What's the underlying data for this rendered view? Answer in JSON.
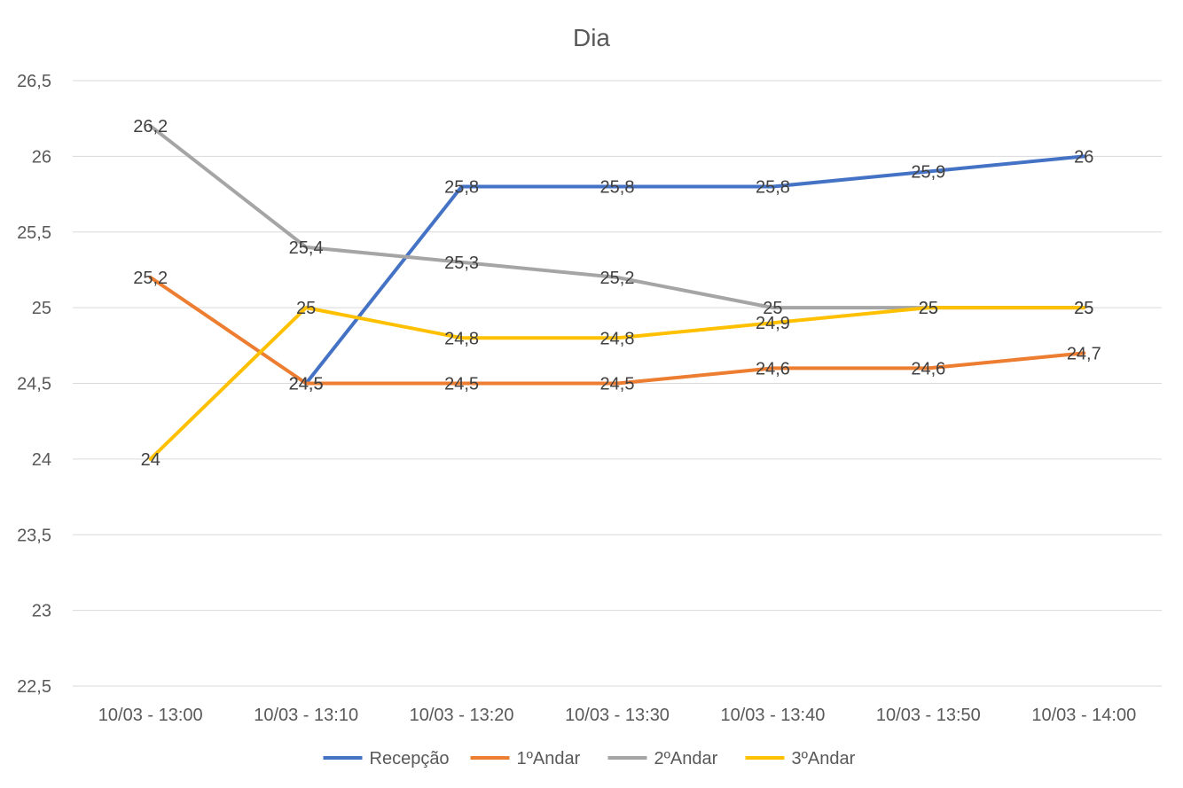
{
  "chart_data": {
    "type": "line",
    "title": "Dia",
    "categories": [
      "10/03 - 13:00",
      "10/03 - 13:10",
      "10/03 - 13:20",
      "10/03 - 13:30",
      "10/03 - 13:40",
      "10/03 - 13:50",
      "10/03 - 14:00"
    ],
    "ylim": [
      22.5,
      26.5
    ],
    "ytick_values": [
      22.5,
      23,
      23.5,
      24,
      24.5,
      25,
      25.5,
      26,
      26.5
    ],
    "ytick_labels": [
      "22,5",
      "23",
      "23,5",
      "24",
      "24,5",
      "25",
      "25,5",
      "26",
      "26,5"
    ],
    "grid": true,
    "legend_position": "bottom",
    "series": [
      {
        "name": "Recepção",
        "color": "#4472C4",
        "values": [
          null,
          24.5,
          25.8,
          25.8,
          25.8,
          25.9,
          26
        ],
        "labels": [
          "",
          "24,5",
          "25,8",
          "25,8",
          "25,8",
          "25,9",
          "26"
        ]
      },
      {
        "name": "1ºAndar",
        "color": "#ED7D31",
        "values": [
          25.2,
          24.5,
          24.5,
          24.5,
          24.6,
          24.6,
          24.7
        ],
        "labels": [
          "25,2",
          "24,5",
          "24,5",
          "24,5",
          "24,6",
          "24,6",
          "24,7"
        ]
      },
      {
        "name": "2ºAndar",
        "color": "#A5A5A5",
        "values": [
          26.2,
          25.4,
          25.3,
          25.2,
          25,
          25,
          25
        ],
        "labels": [
          "26,2",
          "25,4",
          "25,3",
          "25,2",
          "25",
          "25",
          "25"
        ]
      },
      {
        "name": "3ºAndar",
        "color": "#FFC000",
        "values": [
          24,
          25,
          24.8,
          24.8,
          24.9,
          25,
          25
        ],
        "labels": [
          "24",
          "25",
          "24,8",
          "24,8",
          "24,9",
          "25",
          "25"
        ]
      }
    ]
  }
}
